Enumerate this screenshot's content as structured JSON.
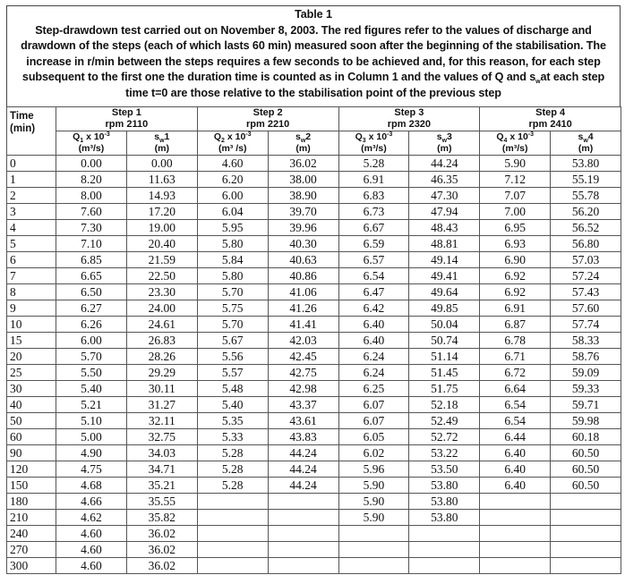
{
  "title": "Table 1",
  "caption": [
    "Step-drawdown test carried out on November 8, 2003. The red figures refer to the values of discharge and",
    "drawdown of the steps (each of which lasts 60 min) measured soon after the beginning of the stabilisation. The",
    "increase in r/min between the steps requires a few seconds to be achieved and, for this reason, for each step",
    "subsequent to the first one the duration time is counted as in Column 1 and the values of Q and s",
    "w",
    "at each step",
    "time t=0 are those relative to the stabilisation point of the previous step"
  ],
  "header": {
    "time": "Time",
    "time_unit": "(min)",
    "steps": [
      {
        "name": "Step 1",
        "rpm": "rpm 2110",
        "q_label": "Q",
        "q_sub": "1",
        "q_mult": " x 10",
        "q_exp": "-3",
        "q_unit": "(m³/s)",
        "s_label": "s",
        "s_sub": "w",
        "s_num": "1",
        "s_unit": "(m)"
      },
      {
        "name": "Step 2",
        "rpm": "rpm 2210",
        "q_label": "Q",
        "q_sub": "2",
        "q_mult": " x 10",
        "q_exp": "-3",
        "q_unit": "(m³ /s)",
        "s_label": "s",
        "s_sub": "w",
        "s_num": "2",
        "s_unit": "(m)"
      },
      {
        "name": "Step 3",
        "rpm": "rpm 2320",
        "q_label": "Q",
        "q_sub": "3",
        "q_mult": " x 10",
        "q_exp": "-3",
        "q_unit": "(m³/s)",
        "s_label": "s",
        "s_sub": "w",
        "s_num": "3",
        "s_unit": "(m)"
      },
      {
        "name": "Step 4",
        "rpm": "rpm 2410",
        "q_label": "Q",
        "q_sub": "4",
        "q_mult": " x 10",
        "q_exp": "-3",
        "q_unit": "(m³/s)",
        "s_label": "s",
        "s_sub": "w",
        "s_num": "4",
        "s_unit": "(m)"
      }
    ]
  },
  "rows": [
    [
      "0",
      "0.00",
      "0.00",
      "4.60",
      "36.02",
      "5.28",
      "44.24",
      "5.90",
      "53.80"
    ],
    [
      "1",
      "8.20",
      "11.63",
      "6.20",
      "38.00",
      "6.91",
      "46.35",
      "7.12",
      "55.19"
    ],
    [
      "2",
      "8.00",
      "14.93",
      "6.00",
      "38.90",
      "6.83",
      "47.30",
      "7.07",
      "55.78"
    ],
    [
      "3",
      "7.60",
      "17.20",
      "6.04",
      "39.70",
      "6.73",
      "47.94",
      "7.00",
      "56.20"
    ],
    [
      "4",
      "7.30",
      "19.00",
      "5.95",
      "39.96",
      "6.67",
      "48.43",
      "6.95",
      "56.52"
    ],
    [
      "5",
      "7.10",
      "20.40",
      "5.80",
      "40.30",
      "6.59",
      "48.81",
      "6.93",
      "56.80"
    ],
    [
      "6",
      "6.85",
      "21.59",
      "5.84",
      "40.63",
      "6.57",
      "49.14",
      "6.90",
      "57.03"
    ],
    [
      "7",
      "6.65",
      "22.50",
      "5.80",
      "40.86",
      "6.54",
      "49.41",
      "6.92",
      "57.24"
    ],
    [
      "8",
      "6.50",
      "23.30",
      "5.70",
      "41.06",
      "6.47",
      "49.64",
      "6.92",
      "57.43"
    ],
    [
      "9",
      "6.27",
      "24.00",
      "5.75",
      "41.26",
      "6.42",
      "49.85",
      "6.91",
      "57.60"
    ],
    [
      "10",
      "6.26",
      "24.61",
      "5.70",
      "41.41",
      "6.40",
      "50.04",
      "6.87",
      "57.74"
    ],
    [
      "15",
      "6.00",
      "26.83",
      "5.67",
      "42.03",
      "6.40",
      "50.74",
      "6.78",
      "58.33"
    ],
    [
      "20",
      "5.70",
      "28.26",
      "5.56",
      "42.45",
      "6.24",
      "51.14",
      "6.71",
      "58.76"
    ],
    [
      "25",
      "5.50",
      "29.29",
      "5.57",
      "42.75",
      "6.24",
      "51.45",
      "6.72",
      "59.09"
    ],
    [
      "30",
      "5.40",
      "30.11",
      "5.48",
      "42.98",
      "6.25",
      "51.75",
      "6.64",
      "59.33"
    ],
    [
      "40",
      "5.21",
      "31.27",
      "5.40",
      "43.37",
      "6.07",
      "52.18",
      "6.54",
      "59.71"
    ],
    [
      "50",
      "5.10",
      "32.11",
      "5.35",
      "43.61",
      "6.07",
      "52.49",
      "6.54",
      "59.98"
    ],
    [
      "60",
      "5.00",
      "32.75",
      "5.33",
      "43.83",
      "6.05",
      "52.72",
      "6.44",
      "60.18"
    ],
    [
      "90",
      "4.90",
      "34.03",
      "5.28",
      "44.24",
      "6.02",
      "53.22",
      "6.40",
      "60.50"
    ],
    [
      "120",
      "4.75",
      "34.71",
      "5.28",
      "44.24",
      "5.96",
      "53.50",
      "6.40",
      "60.50"
    ],
    [
      "150",
      "4.68",
      "35.21",
      "5.28",
      "44.24",
      "5.90",
      "53.80",
      "6.40",
      "60.50"
    ],
    [
      "180",
      "4.66",
      "35.55",
      "",
      "",
      "5.90",
      "53.80",
      "",
      ""
    ],
    [
      "210",
      "4.62",
      "35.82",
      "",
      "",
      "5.90",
      "53.80",
      "",
      ""
    ],
    [
      "240",
      "4.60",
      "36.02",
      "",
      "",
      "",
      "",
      "",
      ""
    ],
    [
      "270",
      "4.60",
      "36.02",
      "",
      "",
      "",
      "",
      "",
      ""
    ],
    [
      "300",
      "4.60",
      "36.02",
      "",
      "",
      "",
      "",
      "",
      ""
    ]
  ]
}
